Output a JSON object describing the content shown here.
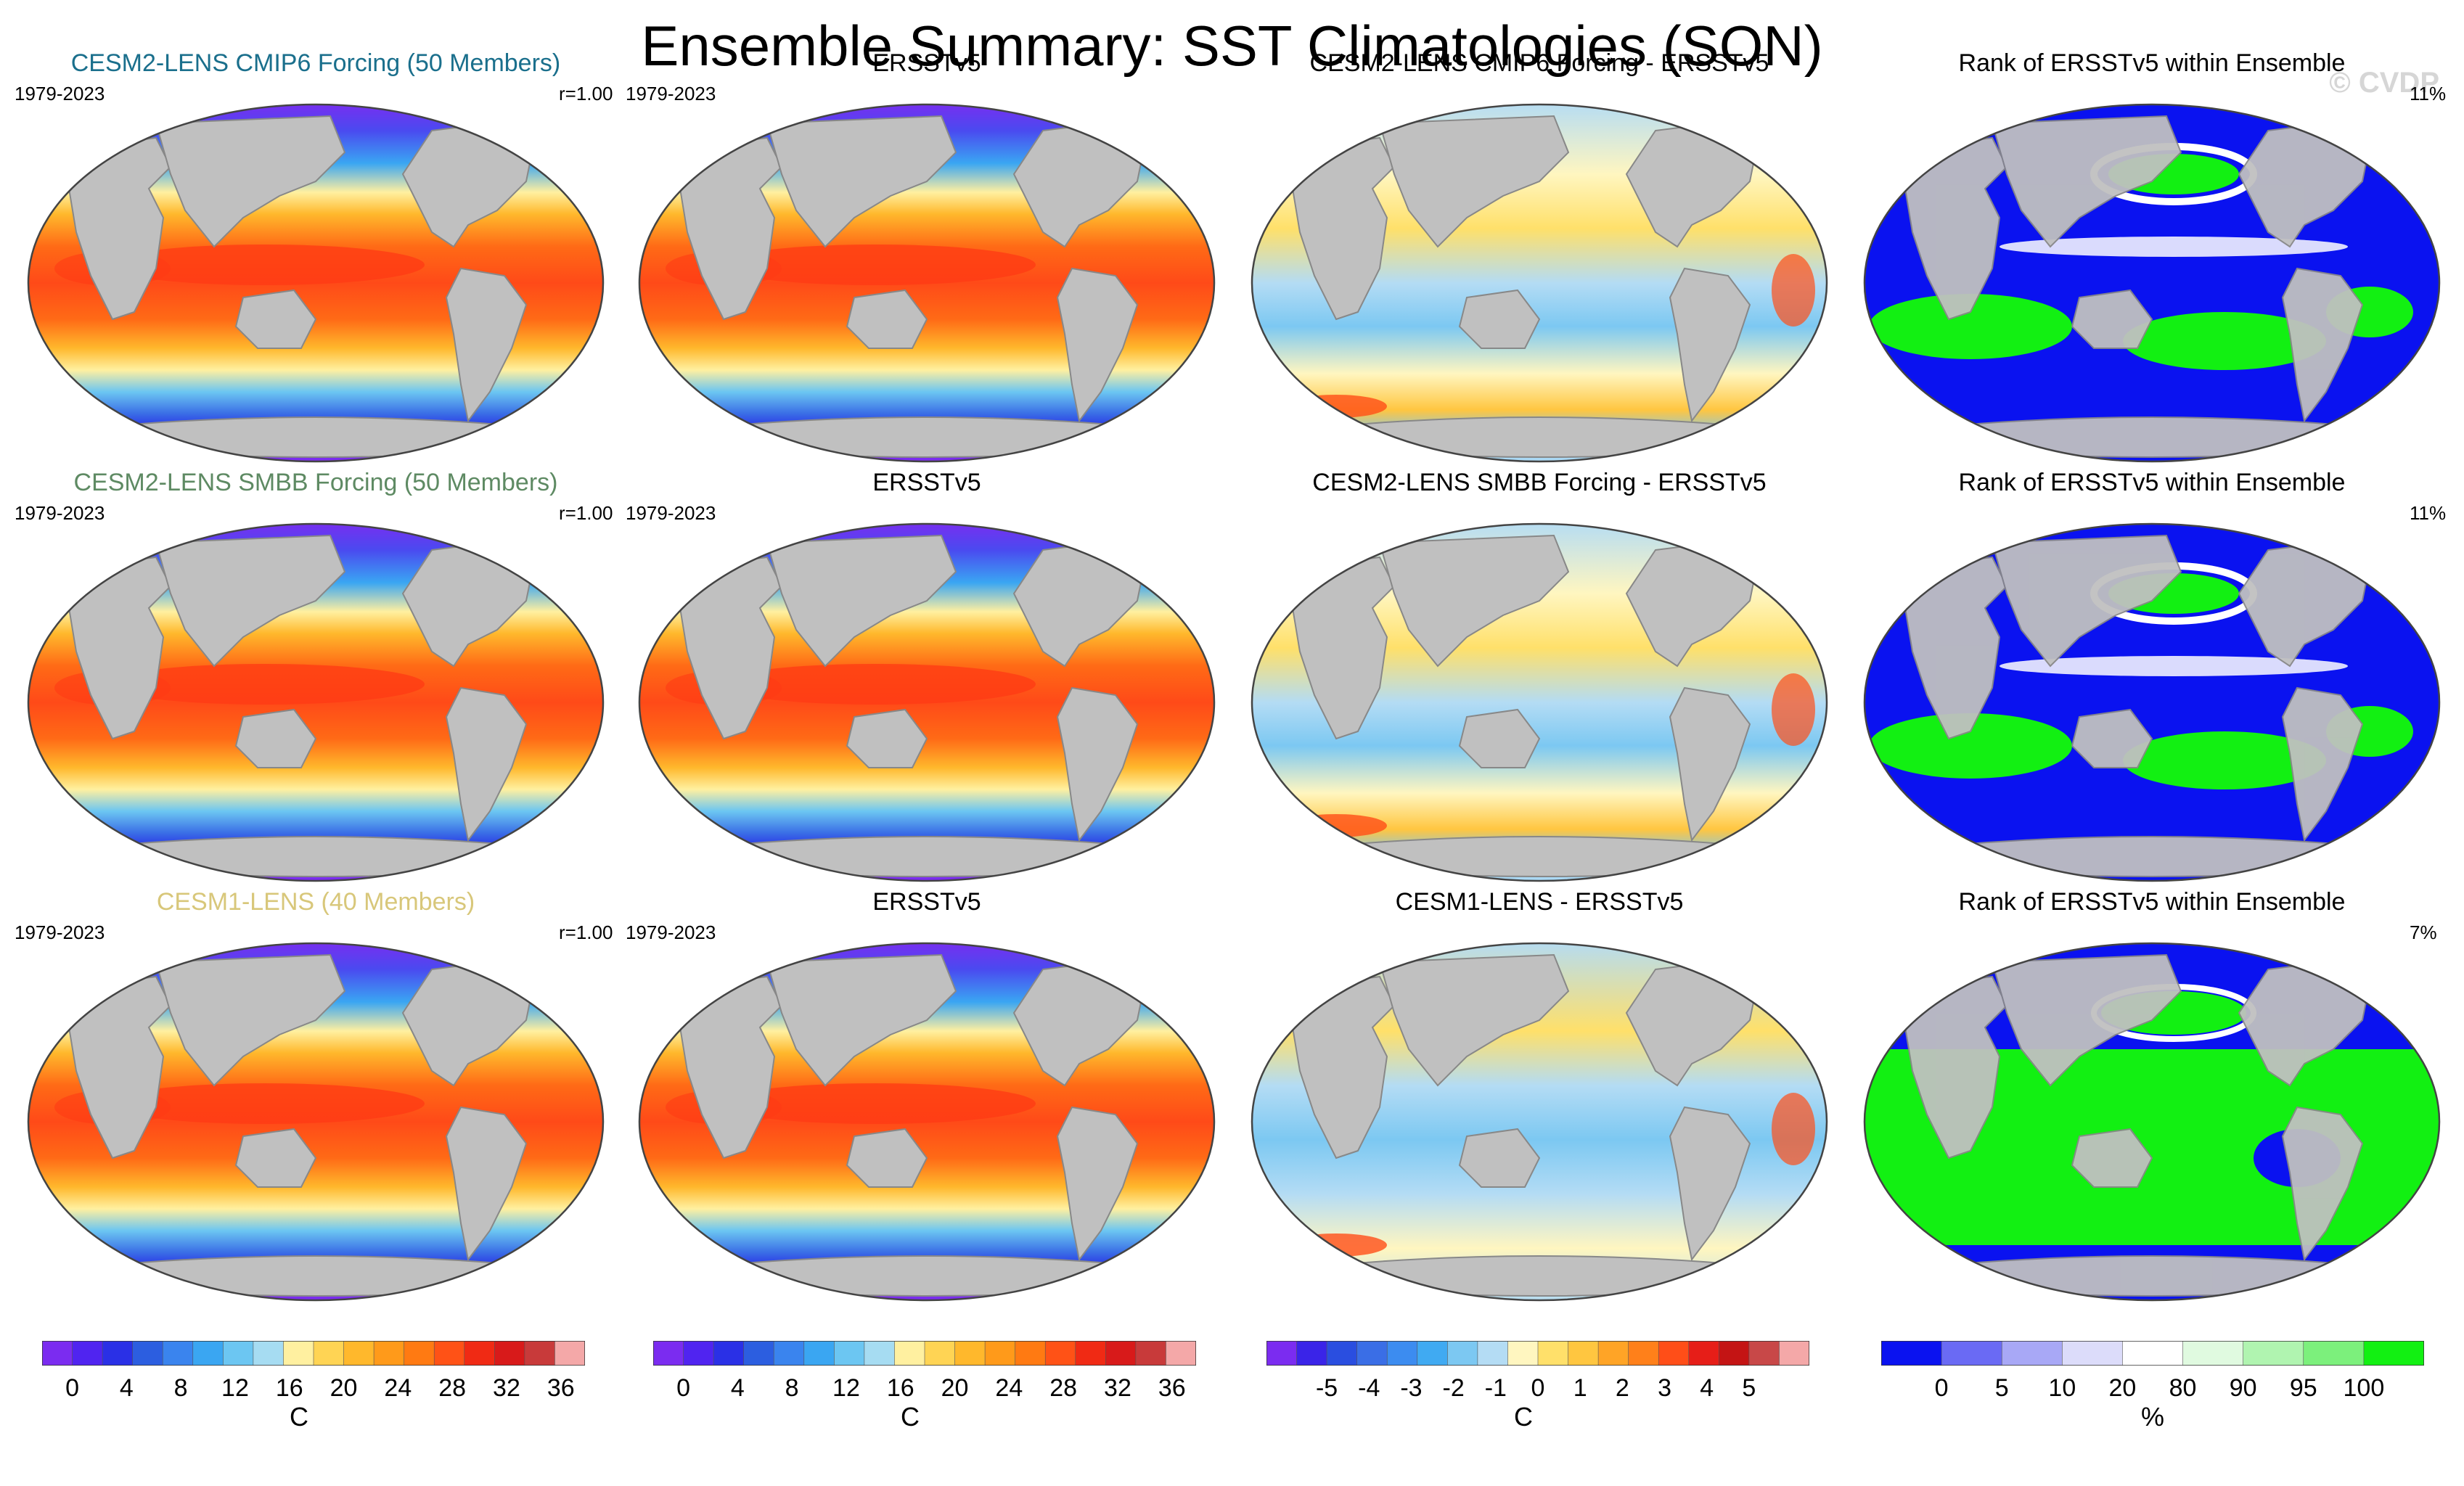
{
  "title": "Ensemble Summary: SST Climatologies (SON)",
  "watermark": "© CVDP",
  "rows": [
    {
      "model": {
        "title": "CESM2-LENS CMIP6 Forcing (50 Members)",
        "title_color": "#1a6f8c",
        "period": "1979-2023",
        "r": "r=1.00"
      },
      "obs": {
        "title": "ERSSTv5",
        "period": "1979-2023"
      },
      "diff": {
        "title": "CESM2-LENS CMIP6 Forcing - ERSSTv5"
      },
      "rank": {
        "title": "Rank of ERSSTv5 within Ensemble",
        "pct": "11%"
      }
    },
    {
      "model": {
        "title": "CESM2-LENS SMBB Forcing (50 Members)",
        "title_color": "#5e8a63",
        "period": "1979-2023",
        "r": "r=1.00"
      },
      "obs": {
        "title": "ERSSTv5",
        "period": "1979-2023"
      },
      "diff": {
        "title": "CESM2-LENS SMBB Forcing - ERSSTv5"
      },
      "rank": {
        "title": "Rank of ERSSTv5 within Ensemble",
        "pct": "11%"
      }
    },
    {
      "model": {
        "title": "CESM1-LENS (40 Members)",
        "title_color": "#d8c77a",
        "period": "1979-2023",
        "r": "r=1.00"
      },
      "obs": {
        "title": "ERSSTv5",
        "period": "1979-2023"
      },
      "diff": {
        "title": "CESM1-LENS - ERSSTv5"
      },
      "rank": {
        "title": "Rank of ERSSTv5 within Ensemble",
        "pct": "7%"
      }
    }
  ],
  "colorbars": [
    {
      "unit": "C",
      "labels": [
        "0",
        "4",
        "8",
        "12",
        "16",
        "20",
        "24",
        "28",
        "32",
        "36"
      ],
      "colors": [
        "#7b2cf0",
        "#5024f0",
        "#2a30e6",
        "#2c5ee0",
        "#3a84ee",
        "#3aa6f2",
        "#6cc6f2",
        "#a6dcf2",
        "#fff0a0",
        "#ffd454",
        "#ffb82c",
        "#ff9a1a",
        "#ff7a12",
        "#ff5216",
        "#f02a14",
        "#d81a1a",
        "#c83a3a",
        "#f4a8a8"
      ]
    },
    {
      "unit": "C",
      "labels": [
        "0",
        "4",
        "8",
        "12",
        "16",
        "20",
        "24",
        "28",
        "32",
        "36"
      ],
      "colors": [
        "#7b2cf0",
        "#5024f0",
        "#2a30e6",
        "#2c5ee0",
        "#3a84ee",
        "#3aa6f2",
        "#6cc6f2",
        "#a6dcf2",
        "#fff0a0",
        "#ffd454",
        "#ffb82c",
        "#ff9a1a",
        "#ff7a12",
        "#ff5216",
        "#f02a14",
        "#d81a1a",
        "#c83a3a",
        "#f4a8a8"
      ]
    },
    {
      "unit": "C",
      "labels": [
        "-5",
        "-4",
        "-3",
        "-2",
        "-1",
        "0",
        "1",
        "2",
        "3",
        "4",
        "5"
      ],
      "colors": [
        "#7b2cf0",
        "#3a24e8",
        "#2a4ee0",
        "#3a6ee6",
        "#3c8cf0",
        "#40aaf2",
        "#7cc8f2",
        "#b4dcf4",
        "#fff6c0",
        "#ffe06a",
        "#ffc640",
        "#ffa426",
        "#ff801a",
        "#ff4e18",
        "#e61e18",
        "#c41414",
        "#c84848",
        "#f4a8a8"
      ]
    },
    {
      "unit": "%",
      "labels": [
        "0",
        "5",
        "10",
        "20",
        "80",
        "90",
        "95",
        "100"
      ],
      "colors": [
        "#0a12f0",
        "#6a6af4",
        "#a8a8f6",
        "#dcdcfa",
        "#ffffff",
        "#e0fae0",
        "#b0f4b0",
        "#7cf07c",
        "#12f012"
      ]
    }
  ],
  "legend_colors": {
    "land": "#c0c0c0",
    "rank_low": "#0a12f0",
    "rank_high": "#12f012",
    "rank_mid": "#ffffff"
  }
}
